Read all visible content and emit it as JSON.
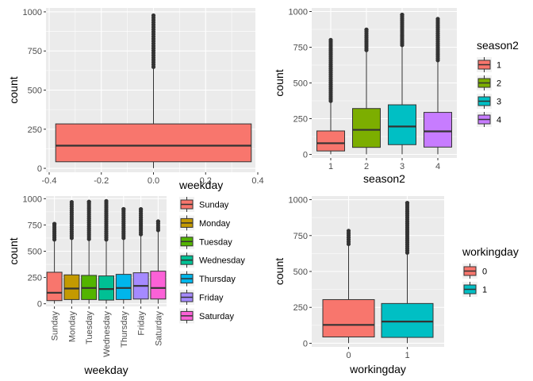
{
  "chart_data": [
    {
      "id": "p1",
      "type": "boxplot",
      "xlabel": "",
      "ylabel": "count",
      "xlim": [
        -0.4,
        0.4
      ],
      "ylim": [
        -25,
        1025
      ],
      "x_ticks": [
        "-0.4",
        "-0.2",
        "0.0",
        "0.2",
        "0.4"
      ],
      "y_ticks": [
        0,
        250,
        500,
        750,
        1000
      ],
      "grid": true,
      "legend": null,
      "boxes": [
        {
          "label": "",
          "fill": "#F8766D",
          "x_left": -0.375,
          "x_right": 0.375,
          "q1": 42,
          "median": 145,
          "q3": 284,
          "whisker_low": 1,
          "whisker_high": 647,
          "outlier_min": 648,
          "outlier_max": 977
        }
      ]
    },
    {
      "id": "p2",
      "type": "boxplot",
      "xlabel": "season2",
      "ylabel": "count",
      "ylim": [
        -25,
        1025
      ],
      "y_ticks": [
        0,
        250,
        500,
        750,
        1000
      ],
      "grid": true,
      "legend": {
        "title": "season2",
        "position": "right"
      },
      "boxes": [
        {
          "label": "1",
          "fill": "#F8766D",
          "q1": 24,
          "median": 78,
          "q3": 164,
          "whisker_low": 1,
          "whisker_high": 373,
          "outlier_min": 374,
          "outlier_max": 801
        },
        {
          "label": "2",
          "fill": "#7CAE00",
          "q1": 49,
          "median": 172,
          "q3": 321,
          "whisker_low": 1,
          "whisker_high": 729,
          "outlier_min": 730,
          "outlier_max": 873
        },
        {
          "label": "3",
          "fill": "#00BFC4",
          "q1": 68,
          "median": 195,
          "q3": 347,
          "whisker_low": 1,
          "whisker_high": 764,
          "outlier_min": 765,
          "outlier_max": 977
        },
        {
          "label": "4",
          "fill": "#C77CFF",
          "q1": 51,
          "median": 161,
          "q3": 294,
          "whisker_low": 1,
          "whisker_high": 658,
          "outlier_min": 659,
          "outlier_max": 948
        }
      ]
    },
    {
      "id": "p3",
      "type": "boxplot",
      "xlabel": "weekday",
      "ylabel": "count",
      "ylim": [
        -25,
        1025
      ],
      "y_ticks": [
        0,
        250,
        500,
        750,
        1000
      ],
      "grid": true,
      "legend": {
        "title": "weekday",
        "position": "right"
      },
      "boxes": [
        {
          "label": "Sunday",
          "fill": "#F8766D",
          "q1": 30,
          "median": 105,
          "q3": 300,
          "whisker_low": 1,
          "whisker_high": 610,
          "outlier_min": 611,
          "outlier_max": 760
        },
        {
          "label": "Monday",
          "fill": "#C49A00",
          "q1": 40,
          "median": 145,
          "q3": 275,
          "whisker_low": 1,
          "whisker_high": 625,
          "outlier_min": 626,
          "outlier_max": 968
        },
        {
          "label": "Tuesday",
          "fill": "#53B400",
          "q1": 40,
          "median": 150,
          "q3": 270,
          "whisker_low": 1,
          "whisker_high": 615,
          "outlier_min": 616,
          "outlier_max": 970
        },
        {
          "label": "Wednesday",
          "fill": "#00C094",
          "q1": 35,
          "median": 140,
          "q3": 265,
          "whisker_low": 1,
          "whisker_high": 610,
          "outlier_min": 611,
          "outlier_max": 977
        },
        {
          "label": "Thursday",
          "fill": "#00B6EB",
          "q1": 40,
          "median": 150,
          "q3": 280,
          "whisker_low": 1,
          "whisker_high": 625,
          "outlier_min": 626,
          "outlier_max": 901
        },
        {
          "label": "Friday",
          "fill": "#A58AFF",
          "q1": 45,
          "median": 170,
          "q3": 295,
          "whisker_low": 1,
          "whisker_high": 660,
          "outlier_min": 661,
          "outlier_max": 900
        },
        {
          "label": "Saturday",
          "fill": "#FB61D7",
          "q1": 45,
          "median": 150,
          "q3": 310,
          "whisker_low": 1,
          "whisker_high": 700,
          "outlier_min": 701,
          "outlier_max": 783
        }
      ]
    },
    {
      "id": "p4",
      "type": "boxplot",
      "xlabel": "workingday",
      "ylabel": "count",
      "ylim": [
        -25,
        1025
      ],
      "y_ticks": [
        0,
        250,
        500,
        750,
        1000
      ],
      "grid": true,
      "legend": {
        "title": "workingday",
        "position": "right"
      },
      "boxes": [
        {
          "label": "0",
          "fill": "#F8766D",
          "q1": 44,
          "median": 128,
          "q3": 304,
          "whisker_low": 1,
          "whisker_high": 690,
          "outlier_min": 691,
          "outlier_max": 783
        },
        {
          "label": "1",
          "fill": "#00BFC4",
          "q1": 41,
          "median": 151,
          "q3": 277,
          "whisker_low": 1,
          "whisker_high": 630,
          "outlier_min": 631,
          "outlier_max": 977
        }
      ]
    }
  ]
}
